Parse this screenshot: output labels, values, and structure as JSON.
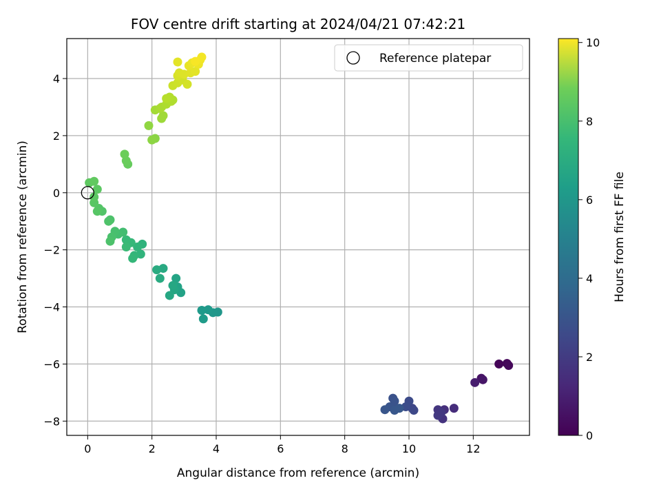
{
  "chart_data": {
    "type": "scatter",
    "title": "FOV centre drift starting at 2024/04/21 07:42:21",
    "xlabel": "Angular distance from reference (arcmin)",
    "ylabel": "Rotation from reference (arcmin)",
    "xlim": [
      -0.65,
      13.75
    ],
    "ylim": [
      -8.5,
      5.4
    ],
    "xticks": [
      0,
      2,
      4,
      6,
      8,
      10,
      12
    ],
    "yticks": [
      -8,
      -6,
      -4,
      -2,
      0,
      2,
      4
    ],
    "grid": true,
    "legend": {
      "position": "top-right",
      "entries": [
        "Reference platepar"
      ]
    },
    "reference_point": {
      "x": 0,
      "y": 0
    },
    "colorbar": {
      "label": "Hours from first FF file",
      "colormap": "viridis",
      "range": [
        0,
        10.1
      ],
      "ticks": [
        0,
        2,
        4,
        6,
        8,
        10
      ]
    },
    "points": [
      {
        "x": 12.8,
        "y": -6.0,
        "c": 0.1
      },
      {
        "x": 13.05,
        "y": -5.98,
        "c": 0.15
      },
      {
        "x": 13.1,
        "y": -6.05,
        "c": 0.2
      },
      {
        "x": 12.25,
        "y": -6.5,
        "c": 0.5
      },
      {
        "x": 12.3,
        "y": -6.55,
        "c": 0.6
      },
      {
        "x": 12.05,
        "y": -6.65,
        "c": 0.8
      },
      {
        "x": 11.4,
        "y": -7.55,
        "c": 1.3
      },
      {
        "x": 11.1,
        "y": -7.6,
        "c": 1.4
      },
      {
        "x": 11.05,
        "y": -7.92,
        "c": 1.5
      },
      {
        "x": 10.9,
        "y": -7.6,
        "c": 1.6
      },
      {
        "x": 10.9,
        "y": -7.8,
        "c": 1.7
      },
      {
        "x": 11.0,
        "y": -7.7,
        "c": 1.65
      },
      {
        "x": 10.1,
        "y": -7.55,
        "c": 2.1
      },
      {
        "x": 10.15,
        "y": -7.62,
        "c": 2.2
      },
      {
        "x": 10.0,
        "y": -7.3,
        "c": 2.3
      },
      {
        "x": 9.9,
        "y": -7.5,
        "c": 2.4
      },
      {
        "x": 9.6,
        "y": -7.55,
        "c": 2.5
      },
      {
        "x": 9.5,
        "y": -7.2,
        "c": 2.55
      },
      {
        "x": 9.55,
        "y": -7.3,
        "c": 2.6
      },
      {
        "x": 9.4,
        "y": -7.5,
        "c": 2.65
      },
      {
        "x": 9.25,
        "y": -7.6,
        "c": 2.7
      },
      {
        "x": 9.55,
        "y": -7.62,
        "c": 2.75
      },
      {
        "x": 9.7,
        "y": -7.55,
        "c": 2.8
      },
      {
        "x": 4.05,
        "y": -4.18,
        "c": 5.3
      },
      {
        "x": 3.9,
        "y": -4.2,
        "c": 5.35
      },
      {
        "x": 3.75,
        "y": -4.1,
        "c": 5.4
      },
      {
        "x": 3.55,
        "y": -4.12,
        "c": 5.45
      },
      {
        "x": 3.6,
        "y": -4.42,
        "c": 5.5
      },
      {
        "x": 2.9,
        "y": -3.5,
        "c": 5.8
      },
      {
        "x": 2.8,
        "y": -3.3,
        "c": 5.85
      },
      {
        "x": 2.75,
        "y": -3.0,
        "c": 5.9
      },
      {
        "x": 2.7,
        "y": -3.4,
        "c": 5.95
      },
      {
        "x": 2.65,
        "y": -3.25,
        "c": 6.0
      },
      {
        "x": 2.55,
        "y": -3.6,
        "c": 6.0
      },
      {
        "x": 2.35,
        "y": -2.65,
        "c": 6.1
      },
      {
        "x": 2.25,
        "y": -3.0,
        "c": 6.15
      },
      {
        "x": 2.15,
        "y": -2.7,
        "c": 6.2
      },
      {
        "x": 1.7,
        "y": -1.8,
        "c": 6.5
      },
      {
        "x": 1.65,
        "y": -2.15,
        "c": 6.55
      },
      {
        "x": 1.55,
        "y": -1.9,
        "c": 6.6
      },
      {
        "x": 1.45,
        "y": -2.2,
        "c": 6.65
      },
      {
        "x": 1.4,
        "y": -2.3,
        "c": 6.7
      },
      {
        "x": 1.35,
        "y": -1.75,
        "c": 6.75
      },
      {
        "x": 1.2,
        "y": -1.65,
        "c": 6.8
      },
      {
        "x": 1.2,
        "y": -1.9,
        "c": 6.85
      },
      {
        "x": 1.1,
        "y": -1.38,
        "c": 7.0
      },
      {
        "x": 0.95,
        "y": -1.45,
        "c": 7.05
      },
      {
        "x": 0.85,
        "y": -1.35,
        "c": 7.1
      },
      {
        "x": 0.75,
        "y": -1.55,
        "c": 7.15
      },
      {
        "x": 0.7,
        "y": -1.7,
        "c": 7.2
      },
      {
        "x": 0.7,
        "y": -0.95,
        "c": 7.2
      },
      {
        "x": 0.65,
        "y": -1.0,
        "c": 7.25
      },
      {
        "x": 0.45,
        "y": -0.65,
        "c": 7.3
      },
      {
        "x": 0.35,
        "y": -0.55,
        "c": 7.35
      },
      {
        "x": 0.3,
        "y": -0.65,
        "c": 7.4
      },
      {
        "x": 0.2,
        "y": -0.35,
        "c": 7.45
      },
      {
        "x": 0.2,
        "y": -0.15,
        "c": 7.5
      },
      {
        "x": 0.3,
        "y": 0.12,
        "c": 7.5
      },
      {
        "x": 0.05,
        "y": 0.35,
        "c": 7.55
      },
      {
        "x": 0.2,
        "y": 0.4,
        "c": 7.6
      },
      {
        "x": 1.25,
        "y": 1.0,
        "c": 7.7
      },
      {
        "x": 1.2,
        "y": 1.12,
        "c": 7.75
      },
      {
        "x": 1.15,
        "y": 1.35,
        "c": 7.8
      },
      {
        "x": 2.1,
        "y": 1.9,
        "c": 8.3
      },
      {
        "x": 2.0,
        "y": 1.85,
        "c": 8.35
      },
      {
        "x": 1.9,
        "y": 2.35,
        "c": 8.4
      },
      {
        "x": 2.3,
        "y": 2.6,
        "c": 8.6
      },
      {
        "x": 2.35,
        "y": 2.7,
        "c": 8.65
      },
      {
        "x": 2.1,
        "y": 2.9,
        "c": 8.7
      },
      {
        "x": 2.25,
        "y": 2.95,
        "c": 8.75
      },
      {
        "x": 2.3,
        "y": 3.0,
        "c": 8.8
      },
      {
        "x": 2.45,
        "y": 3.1,
        "c": 8.85
      },
      {
        "x": 2.6,
        "y": 3.2,
        "c": 8.9
      },
      {
        "x": 2.65,
        "y": 3.25,
        "c": 8.9
      },
      {
        "x": 2.55,
        "y": 3.35,
        "c": 8.95
      },
      {
        "x": 2.45,
        "y": 3.3,
        "c": 9.0
      },
      {
        "x": 2.65,
        "y": 3.75,
        "c": 9.3
      },
      {
        "x": 2.8,
        "y": 3.85,
        "c": 9.35
      },
      {
        "x": 2.95,
        "y": 3.95,
        "c": 9.4
      },
      {
        "x": 3.1,
        "y": 3.8,
        "c": 9.45
      },
      {
        "x": 2.8,
        "y": 4.1,
        "c": 9.5
      },
      {
        "x": 2.85,
        "y": 4.2,
        "c": 9.55
      },
      {
        "x": 3.0,
        "y": 4.15,
        "c": 9.6
      },
      {
        "x": 3.2,
        "y": 4.2,
        "c": 9.65
      },
      {
        "x": 3.35,
        "y": 4.25,
        "c": 9.7
      },
      {
        "x": 3.15,
        "y": 4.45,
        "c": 9.75
      },
      {
        "x": 3.25,
        "y": 4.55,
        "c": 9.8
      },
      {
        "x": 3.45,
        "y": 4.5,
        "c": 9.85
      },
      {
        "x": 3.5,
        "y": 4.65,
        "c": 9.9
      },
      {
        "x": 3.55,
        "y": 4.75,
        "c": 9.95
      },
      {
        "x": 2.8,
        "y": 4.58,
        "c": 9.7
      },
      {
        "x": 3.35,
        "y": 4.6,
        "c": 10.0
      }
    ]
  }
}
